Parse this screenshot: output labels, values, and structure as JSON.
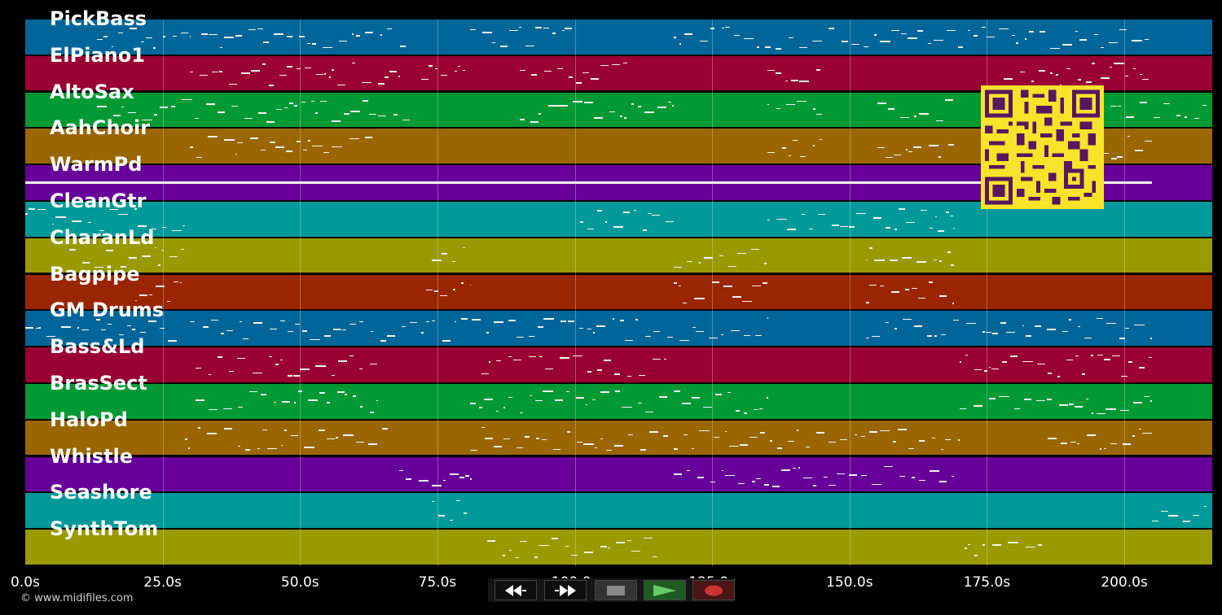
{
  "tracks": [
    {
      "name": "PickBass",
      "color": "#006699"
    },
    {
      "name": "ElPiano1",
      "color": "#990033"
    },
    {
      "name": "AltoSax",
      "color": "#009933"
    },
    {
      "name": "AahChoir",
      "color": "#996600"
    },
    {
      "name": "WarmPd",
      "color": "#660099"
    },
    {
      "name": "CleanGtr",
      "color": "#009999"
    },
    {
      "name": "CharanLd",
      "color": "#999900"
    },
    {
      "name": "Bagpipe",
      "color": "#992600"
    },
    {
      "name": "GM Drums",
      "color": "#006699"
    },
    {
      "name": "Bass&Ld",
      "color": "#990033"
    },
    {
      "name": "BrasSect",
      "color": "#009933"
    },
    {
      "name": "HaloPd",
      "color": "#996600"
    },
    {
      "name": "Whistle",
      "color": "#660099"
    },
    {
      "name": "Seashore",
      "color": "#009999"
    },
    {
      "name": "SynthTom",
      "color": "#999900"
    }
  ],
  "timeline": {
    "ticks": [
      "0.0s",
      "25.0s",
      "50.0s",
      "75.0s",
      "100.0s",
      "125.0s",
      "150.0s",
      "175.0s",
      "200.0s"
    ],
    "tick_values": [
      0,
      25,
      50,
      75,
      100,
      125,
      150,
      175,
      200
    ],
    "max_seconds": 216
  },
  "credit": "© www.midifiles.com",
  "transport": {
    "rewind_icon": "rewind-icon",
    "forward_icon": "fast-forward-icon",
    "stop_icon": "stop-icon",
    "play_icon": "play-icon",
    "record_icon": "record-icon"
  },
  "qr_icon": "qr-code-icon"
}
